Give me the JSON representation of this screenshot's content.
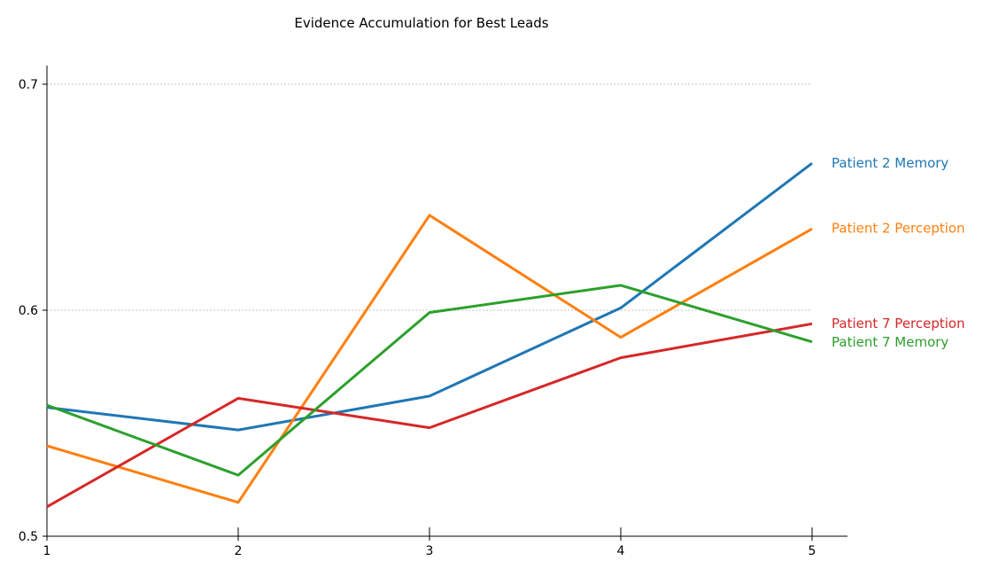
{
  "chart_data": {
    "type": "line",
    "title": "Evidence Accumulation for Best Leads",
    "xlabel": "",
    "ylabel": "",
    "x": [
      1,
      2,
      3,
      4,
      5
    ],
    "x_tick_labels": [
      "1",
      "2",
      "3",
      "4",
      "5"
    ],
    "y_ticks": [
      0.5,
      0.6,
      0.7
    ],
    "y_tick_labels": [
      "0.5",
      "0.6",
      "0.7"
    ],
    "xlim": [
      1,
      5.18
    ],
    "ylim": [
      0.5,
      0.708
    ],
    "grid": "horizontal",
    "legend": "labels at line ends",
    "series": [
      {
        "name": "Patient 2 Memory",
        "color": "#1f77b4",
        "values": [
          0.557,
          0.547,
          0.562,
          0.601,
          0.665
        ]
      },
      {
        "name": "Patient 2 Perception",
        "color": "#ff7f0e",
        "values": [
          0.54,
          0.515,
          0.642,
          0.588,
          0.636
        ]
      },
      {
        "name": "Patient 7 Perception",
        "color": "#d62728",
        "values": [
          0.513,
          0.561,
          0.548,
          0.579,
          0.594
        ]
      },
      {
        "name": "Patient 7 Memory",
        "color": "#2ca02c",
        "values": [
          0.558,
          0.527,
          0.599,
          0.611,
          0.586
        ]
      }
    ]
  }
}
